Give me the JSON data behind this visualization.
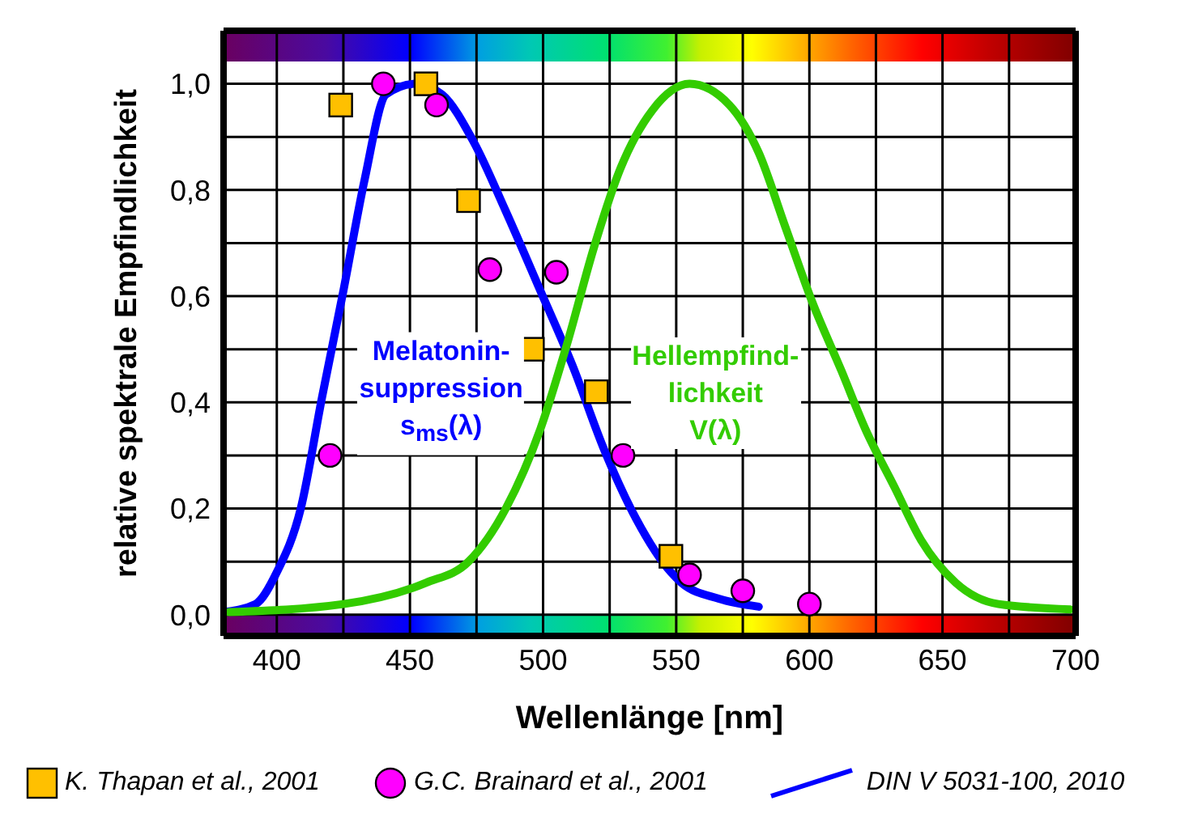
{
  "chart_data": {
    "type": "line",
    "xlabel": "Wellenlänge [nm]",
    "ylabel": "relative spektrale Empfindlichkeit",
    "xlim": [
      380,
      700
    ],
    "xticks": [
      400,
      {
        "value": 425,
        "label": null
      },
      450,
      {
        "value": 475,
        "label": null
      },
      500,
      {
        "value": 525,
        "label": null
      },
      550,
      {
        "value": 575,
        "label": null
      },
      600,
      {
        "value": 625,
        "label": null
      },
      650,
      {
        "value": 675,
        "label": null
      },
      700
    ],
    "ylim": [
      -0.04,
      1.1
    ],
    "yticks": [
      {
        "value": 0,
        "label": "0,0"
      },
      {
        "value": 0.1,
        "label": null
      },
      {
        "value": 0.2,
        "label": "0,2"
      },
      {
        "value": 0.3,
        "label": null
      },
      {
        "value": 0.4,
        "label": "0,4"
      },
      {
        "value": 0.5,
        "label": null
      },
      {
        "value": 0.6,
        "label": "0,6"
      },
      {
        "value": 0.7,
        "label": null
      },
      {
        "value": 0.8,
        "label": "0,8"
      },
      {
        "value": 0.9,
        "label": null
      },
      {
        "value": 1.0,
        "label": "1,0"
      }
    ],
    "grid": true,
    "legend": "bottom",
    "series": [
      {
        "name": "K. Thapan et al., 2001",
        "type": "scatter",
        "marker": "square",
        "color": "#ffc000",
        "x": [
          424,
          456,
          472,
          496,
          520,
          548
        ],
        "values": [
          0.96,
          1.0,
          0.78,
          0.5,
          0.42,
          0.11
        ]
      },
      {
        "name": "G.C. Brainard et al., 2001",
        "type": "scatter",
        "marker": "circle",
        "color": "#ff00ff",
        "x": [
          420,
          440,
          460,
          480,
          505,
          530,
          555,
          575,
          600
        ],
        "values": [
          0.3,
          1.0,
          0.96,
          0.65,
          0.645,
          0.3,
          0.075,
          0.045,
          0.02
        ]
      },
      {
        "name": "DIN V 5031-100, 2010",
        "color": "#0000ff",
        "x": [
          380,
          392,
          400,
          409,
          417,
          425,
          433,
          441,
          452,
          462,
          474,
          486,
          499,
          511,
          523,
          535,
          548,
          552,
          566,
          581
        ],
        "values": [
          0.005,
          0.02,
          0.08,
          0.2,
          0.41,
          0.61,
          0.82,
          0.98,
          1.0,
          0.98,
          0.89,
          0.76,
          0.61,
          0.47,
          0.31,
          0.18,
          0.08,
          0.06,
          0.03,
          0.015
        ]
      },
      {
        "color": "#33cc00",
        "x": [
          382,
          425,
          456,
          472,
          486,
          499,
          509,
          519,
          529,
          541,
          555,
          570,
          581,
          591,
          601,
          612,
          621,
          632,
          642,
          655,
          671,
          698
        ],
        "values": [
          0.005,
          0.02,
          0.06,
          0.1,
          0.2,
          0.35,
          0.51,
          0.69,
          0.84,
          0.95,
          1.0,
          0.96,
          0.87,
          0.73,
          0.59,
          0.46,
          0.35,
          0.24,
          0.14,
          0.06,
          0.02,
          0.01
        ]
      }
    ],
    "annotations": [
      "Melatonin-\nsuppression\ns$_{ms}$(λ)",
      "Hellempfind-\nlichkeit\nV(λ)"
    ]
  }
}
